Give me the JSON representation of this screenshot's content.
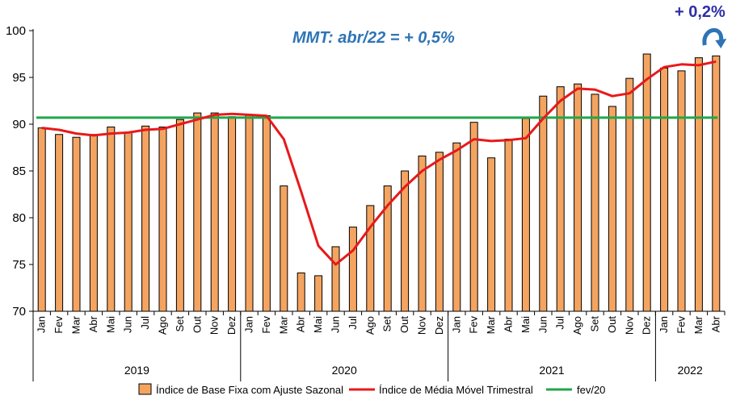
{
  "chart_data": {
    "type": "bar",
    "ylim": [
      70,
      100
    ],
    "yticks": [
      70,
      75,
      80,
      85,
      90,
      95,
      100
    ],
    "categories": [
      "Jan",
      "Fev",
      "Mar",
      "Abr",
      "Mai",
      "Jun",
      "Jul",
      "Ago",
      "Set",
      "Out",
      "Nov",
      "Dez",
      "Jan",
      "Fev",
      "Mar",
      "Abr",
      "Mai",
      "Jun",
      "Jul",
      "Ago",
      "Set",
      "Out",
      "Nov",
      "Dez",
      "Jan",
      "Fev",
      "Mar",
      "Abr",
      "Mai",
      "Jun",
      "Jul",
      "Ago",
      "Set",
      "Out",
      "Nov",
      "Dez",
      "Jan",
      "Fev",
      "Mar",
      "Abr"
    ],
    "years": [
      {
        "label": "2019",
        "count": 12
      },
      {
        "label": "2020",
        "count": 12
      },
      {
        "label": "2021",
        "count": 12
      },
      {
        "label": "2022",
        "count": 4
      }
    ],
    "series": [
      {
        "name": "Índice de Base Fixa com Ajuste Sazonal",
        "type": "bar",
        "color": "#f4a460",
        "values": [
          89.6,
          88.9,
          88.6,
          88.9,
          89.7,
          89.1,
          89.8,
          89.7,
          90.5,
          91.2,
          91.2,
          90.8,
          91.0,
          90.9,
          83.4,
          74.1,
          73.8,
          76.9,
          79.0,
          81.3,
          83.4,
          85.0,
          86.6,
          87.0,
          88.0,
          90.2,
          86.4,
          88.4,
          90.6,
          93.0,
          94.0,
          94.3,
          93.2,
          91.9,
          94.9,
          97.5,
          96.0,
          95.7,
          97.1,
          97.3
        ]
      },
      {
        "name": "Índice de Média Móvel Trimestral",
        "type": "line",
        "color": "#e8191a",
        "values": [
          89.6,
          89.4,
          89.0,
          88.8,
          89.0,
          89.1,
          89.4,
          89.5,
          90.0,
          90.5,
          91.0,
          91.1,
          91.0,
          90.9,
          88.4,
          82.8,
          77.0,
          75.0,
          76.5,
          79.0,
          81.3,
          83.3,
          85.0,
          86.2,
          87.2,
          88.4,
          88.2,
          88.3,
          88.5,
          90.6,
          92.5,
          93.8,
          93.7,
          93.0,
          93.3,
          94.8,
          96.1,
          96.4,
          96.3,
          96.7
        ]
      },
      {
        "name": "fev/20",
        "type": "line",
        "color": "#22a64a",
        "value": 90.7
      }
    ],
    "annotations": [
      "MMT: abr/22 =  + 0,5%",
      "+ 0,2%"
    ]
  }
}
